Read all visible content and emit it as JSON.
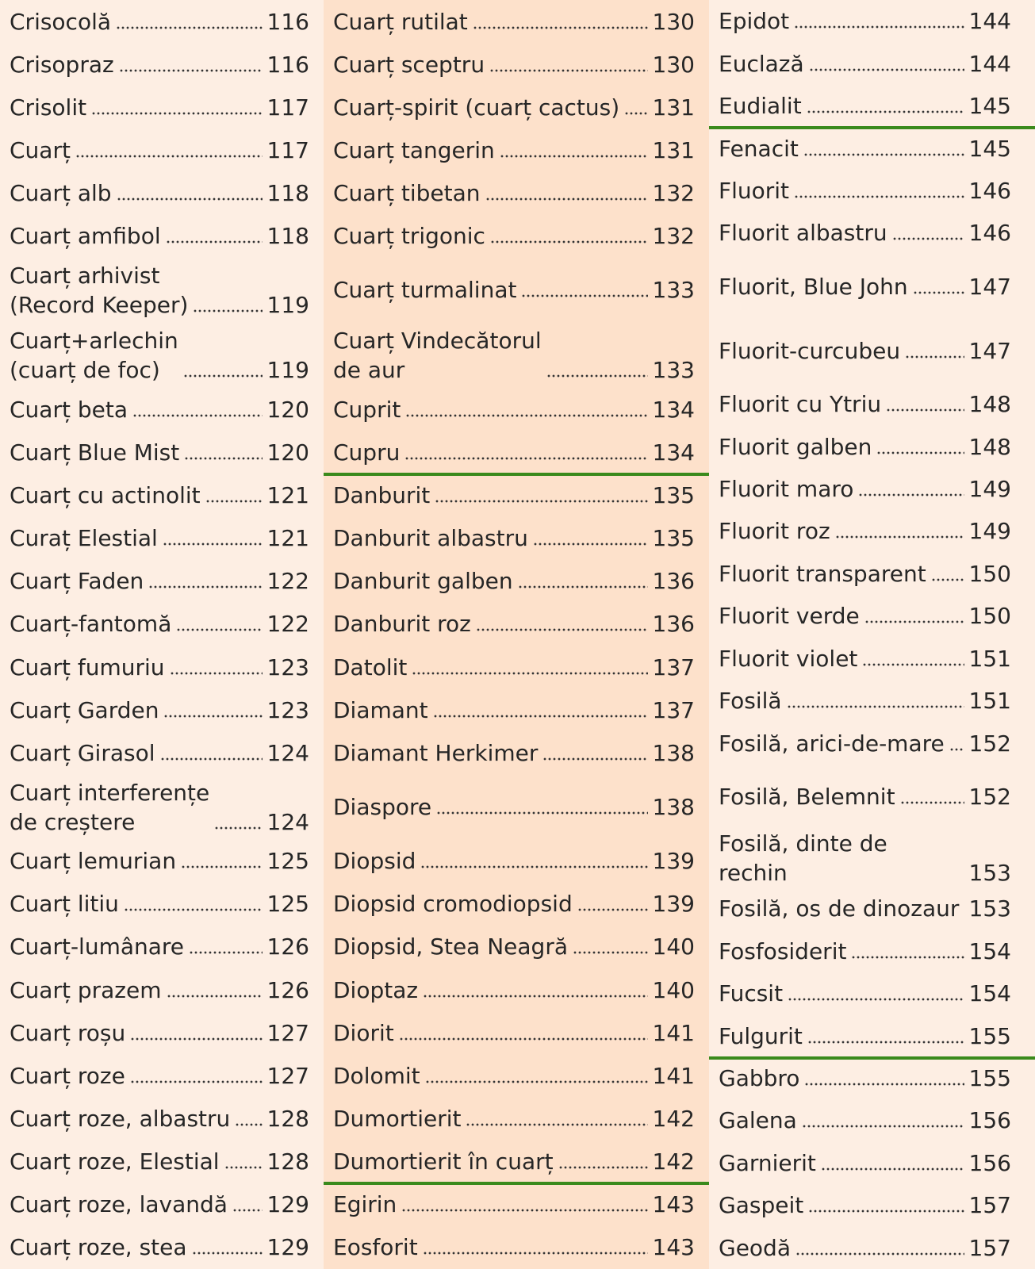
{
  "columns": [
    {
      "groups": [
        {
          "entries": [
            {
              "name": "Crisocolă",
              "page": 116
            },
            {
              "name": "Crisopraz",
              "page": 116
            },
            {
              "name": "Crisolit",
              "page": 117
            },
            {
              "name": "Cuarț",
              "page": 117
            },
            {
              "name": "Cuarț alb",
              "page": 118
            },
            {
              "name": "Cuarț amfibol",
              "page": 118
            },
            {
              "name": "Cuarț arhivist\n(Record Keeper)",
              "page": 119
            },
            {
              "name": "Cuarț+arlechin\n(cuarț de foc)",
              "page": 119
            },
            {
              "name": "Cuarț beta",
              "page": 120
            },
            {
              "name": "Cuarț Blue Mist",
              "page": 120
            },
            {
              "name": "Cuarț cu actinolit",
              "page": 121
            },
            {
              "name": "Curaț Elestial",
              "page": 121
            },
            {
              "name": "Cuarț Faden",
              "page": 122
            },
            {
              "name": "Cuarț-fantomă",
              "page": 122
            },
            {
              "name": "Cuarț fumuriu",
              "page": 123
            },
            {
              "name": "Cuarț Garden",
              "page": 123
            },
            {
              "name": "Cuarț Girasol",
              "page": 124
            },
            {
              "name": "Cuarț interferențe\nde creștere",
              "page": 124
            },
            {
              "name": "Cuarț lemurian",
              "page": 125
            },
            {
              "name": "Cuarț litiu",
              "page": 125
            },
            {
              "name": "Cuarț-lumânare",
              "page": 126
            },
            {
              "name": "Cuarț prazem",
              "page": 126
            },
            {
              "name": "Cuarț roșu",
              "page": 127
            },
            {
              "name": "Cuarț roze",
              "page": 127
            },
            {
              "name": "Cuarț roze, albastru",
              "page": 128
            },
            {
              "name": "Cuarț roze, Elestial",
              "page": 128
            },
            {
              "name": "Cuarț roze, lavandă",
              "page": 129
            },
            {
              "name": "Cuarț roze, stea",
              "page": 129
            }
          ]
        }
      ]
    },
    {
      "groups": [
        {
          "entries": [
            {
              "name": "Cuarț rutilat",
              "page": 130
            },
            {
              "name": "Cuarț sceptru",
              "page": 130
            },
            {
              "name": "Cuarț-spirit (cuarț cactus)",
              "page": 131
            },
            {
              "name": "Cuarț tangerin",
              "page": 131
            },
            {
              "name": "Cuarț tibetan",
              "page": 132
            },
            {
              "name": "Cuarț trigonic",
              "page": 132
            },
            {
              "name": "Cuarț turmalinat",
              "page": 133
            },
            {
              "name": "Cuarț Vindecătorul\nde aur",
              "page": 133
            },
            {
              "name": "Cuprit",
              "page": 134
            },
            {
              "name": "Cupru",
              "page": 134
            }
          ]
        },
        {
          "entries": [
            {
              "name": "Danburit",
              "page": 135
            },
            {
              "name": "Danburit albastru",
              "page": 135
            },
            {
              "name": "Danburit galben",
              "page": 136
            },
            {
              "name": "Danburit roz",
              "page": 136
            },
            {
              "name": "Datolit",
              "page": 137
            },
            {
              "name": "Diamant",
              "page": 137
            },
            {
              "name": "Diamant Herkimer",
              "page": 138
            },
            {
              "name": "Diaspore",
              "page": 138
            },
            {
              "name": "Diopsid",
              "page": 139
            },
            {
              "name": "Diopsid cromodiopsid",
              "page": 139
            },
            {
              "name": "Diopsid, Stea Neagră",
              "page": 140
            },
            {
              "name": "Dioptaz",
              "page": 140
            },
            {
              "name": "Diorit",
              "page": 141
            },
            {
              "name": "Dolomit",
              "page": 141
            },
            {
              "name": "Dumortierit",
              "page": 142
            },
            {
              "name": "Dumortierit în cuarț",
              "page": 142
            }
          ]
        },
        {
          "entries": [
            {
              "name": "Egirin",
              "page": 143
            },
            {
              "name": "Eosforit",
              "page": 143
            }
          ]
        }
      ]
    },
    {
      "groups": [
        {
          "entries": [
            {
              "name": "Epidot",
              "page": 144
            },
            {
              "name": "Euclază",
              "page": 144
            },
            {
              "name": "Eudialit",
              "page": 145
            }
          ]
        },
        {
          "entries": [
            {
              "name": "Fenacit",
              "page": 145
            },
            {
              "name": "Fluorit",
              "page": 146
            },
            {
              "name": "Fluorit albastru",
              "page": 146
            },
            {
              "name": "Fluorit, Blue John",
              "page": 147
            },
            {
              "name": "Fluorit-curcubeu",
              "page": 147
            },
            {
              "name": "Fluorit cu Ytriu",
              "page": 148
            },
            {
              "name": "Fluorit galben",
              "page": 148
            },
            {
              "name": "Fluorit maro",
              "page": 149
            },
            {
              "name": "Fluorit roz",
              "page": 149
            },
            {
              "name": "Fluorit transparent",
              "page": 150
            },
            {
              "name": "Fluorit verde",
              "page": 150
            },
            {
              "name": "Fluorit violet",
              "page": 151
            },
            {
              "name": "Fosilă",
              "page": 151
            },
            {
              "name": "Fosilă, arici-de-mare",
              "page": 152
            },
            {
              "name": "Fosilă, Belemnit",
              "page": 152
            },
            {
              "name": "Fosilă, dinte de rechin",
              "page": 153
            },
            {
              "name": "Fosilă, os de dinozaur",
              "page": 153
            },
            {
              "name": "Fosfosiderit",
              "page": 154
            },
            {
              "name": "Fucsit",
              "page": 154
            },
            {
              "name": "Fulgurit",
              "page": 155
            }
          ]
        },
        {
          "entries": [
            {
              "name": "Gabbro",
              "page": 155
            },
            {
              "name": "Galena",
              "page": 156
            },
            {
              "name": "Garnierit",
              "page": 156
            },
            {
              "name": "Gaspeit",
              "page": 157
            },
            {
              "name": "Geodă",
              "page": 157
            }
          ]
        }
      ]
    }
  ]
}
